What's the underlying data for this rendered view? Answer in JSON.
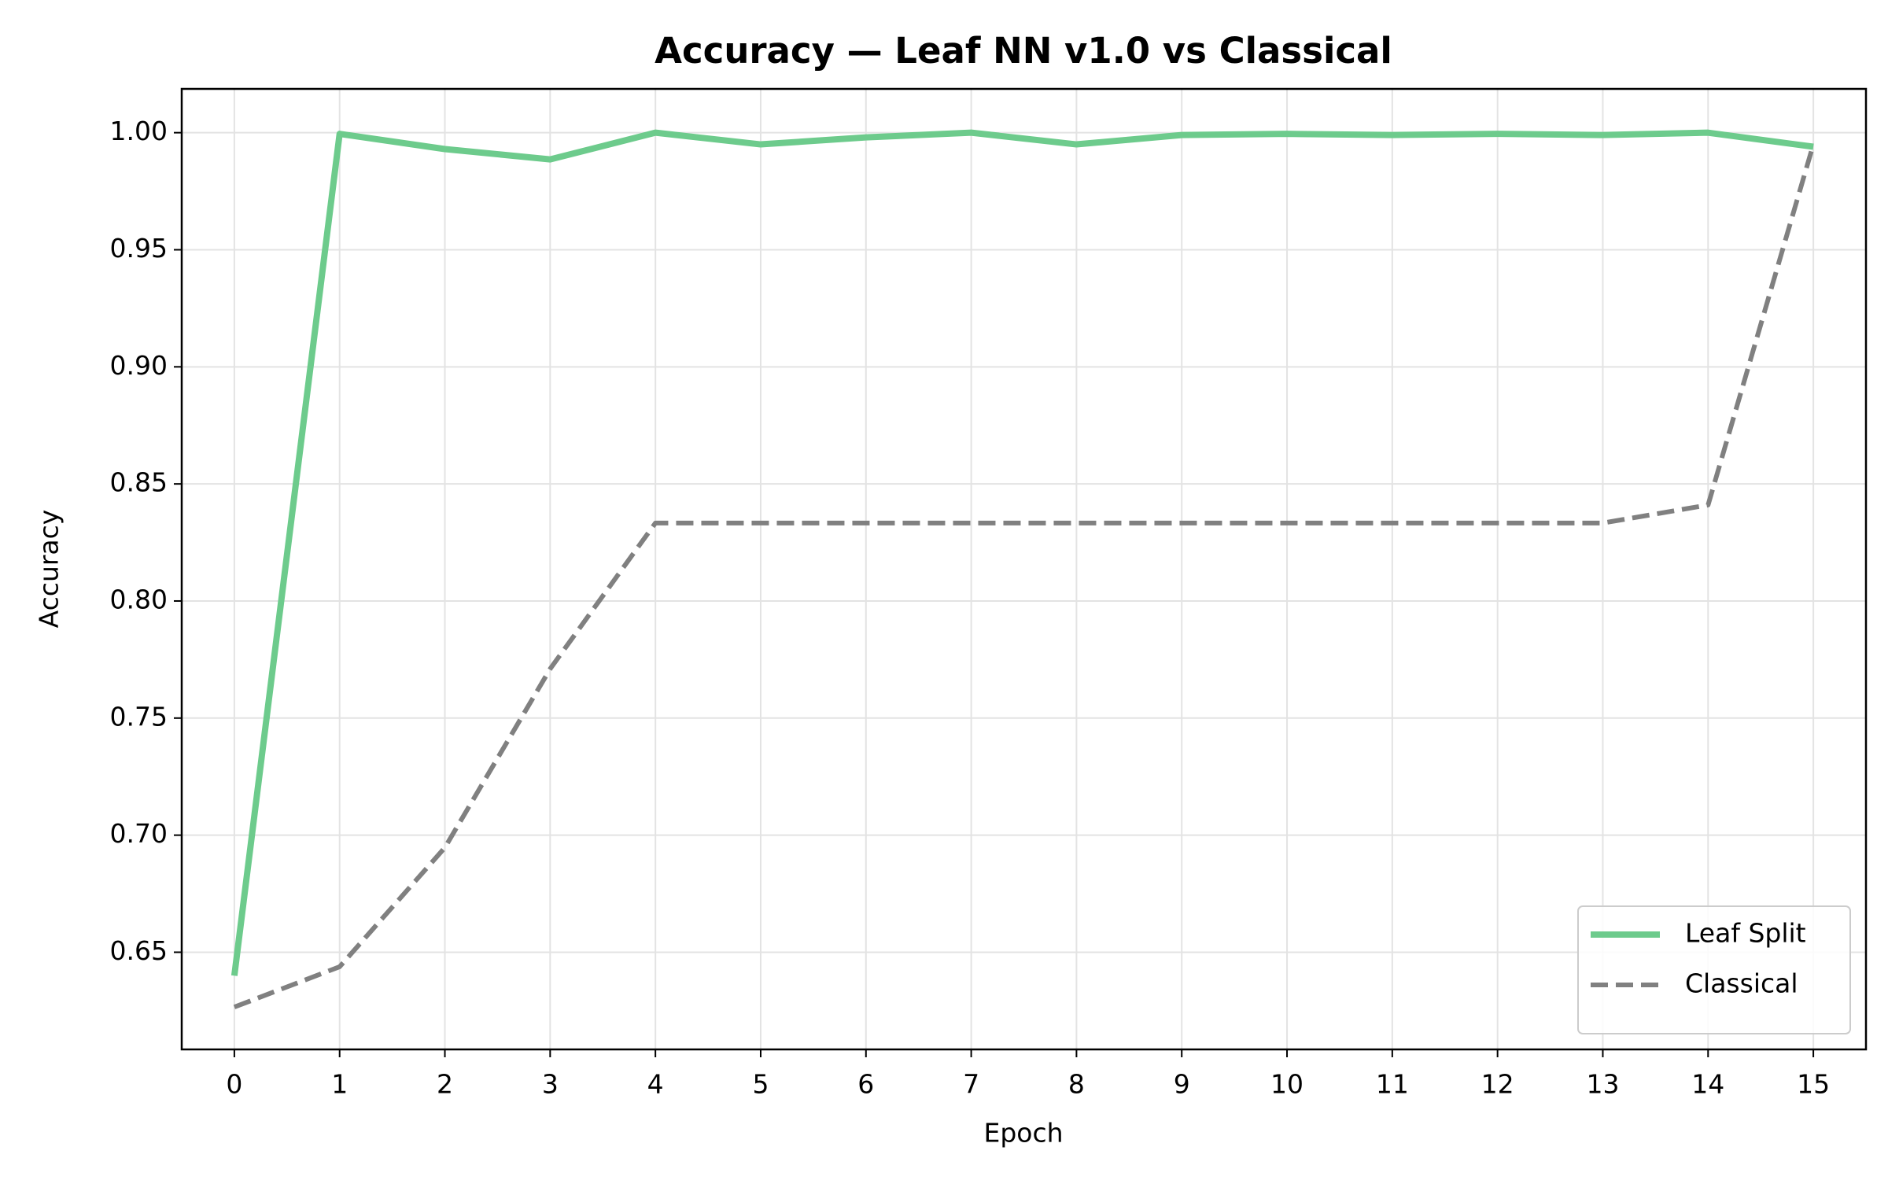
{
  "chart_data": {
    "type": "line",
    "title": "Accuracy — Leaf NN v1.0 vs Classical",
    "x_label": "Epoch",
    "y_label": "Accuracy",
    "x": [
      0,
      1,
      2,
      3,
      4,
      5,
      6,
      7,
      8,
      9,
      10,
      11,
      12,
      13,
      14,
      15
    ],
    "series": [
      {
        "name": "Leaf Split",
        "color": "#6dcb8c",
        "style": "solid",
        "values": [
          0.64,
          0.9995,
          0.993,
          0.9886,
          1.0,
          0.995,
          0.998,
          1.0,
          0.995,
          0.999,
          0.9995,
          0.999,
          0.9995,
          0.999,
          1.0,
          0.994
        ]
      },
      {
        "name": "Classical",
        "color": "#808080",
        "style": "dashed",
        "values": [
          0.6266,
          0.6438,
          0.6947,
          0.771,
          0.8333,
          0.8333,
          0.8333,
          0.8333,
          0.8333,
          0.8333,
          0.8333,
          0.8333,
          0.8333,
          0.8333,
          0.841,
          0.995
        ]
      }
    ],
    "xlim": [
      -0.5,
      15.5
    ],
    "xticks": [
      0,
      1,
      2,
      3,
      4,
      5,
      6,
      7,
      8,
      9,
      10,
      11,
      12,
      13,
      14,
      15
    ],
    "ylim": [
      0.6085,
      1.0187
    ],
    "yticks": [
      {
        "value": 0.65,
        "label": "0.65"
      },
      {
        "value": 0.7,
        "label": "0.70"
      },
      {
        "value": 0.75,
        "label": "0.75"
      },
      {
        "value": 0.8,
        "label": "0.80"
      },
      {
        "value": 0.85,
        "label": "0.85"
      },
      {
        "value": 0.9,
        "label": "0.90"
      },
      {
        "value": 0.95,
        "label": "0.95"
      },
      {
        "value": 1.0,
        "label": "1.00"
      }
    ],
    "grid": true,
    "legend": "lower right"
  }
}
